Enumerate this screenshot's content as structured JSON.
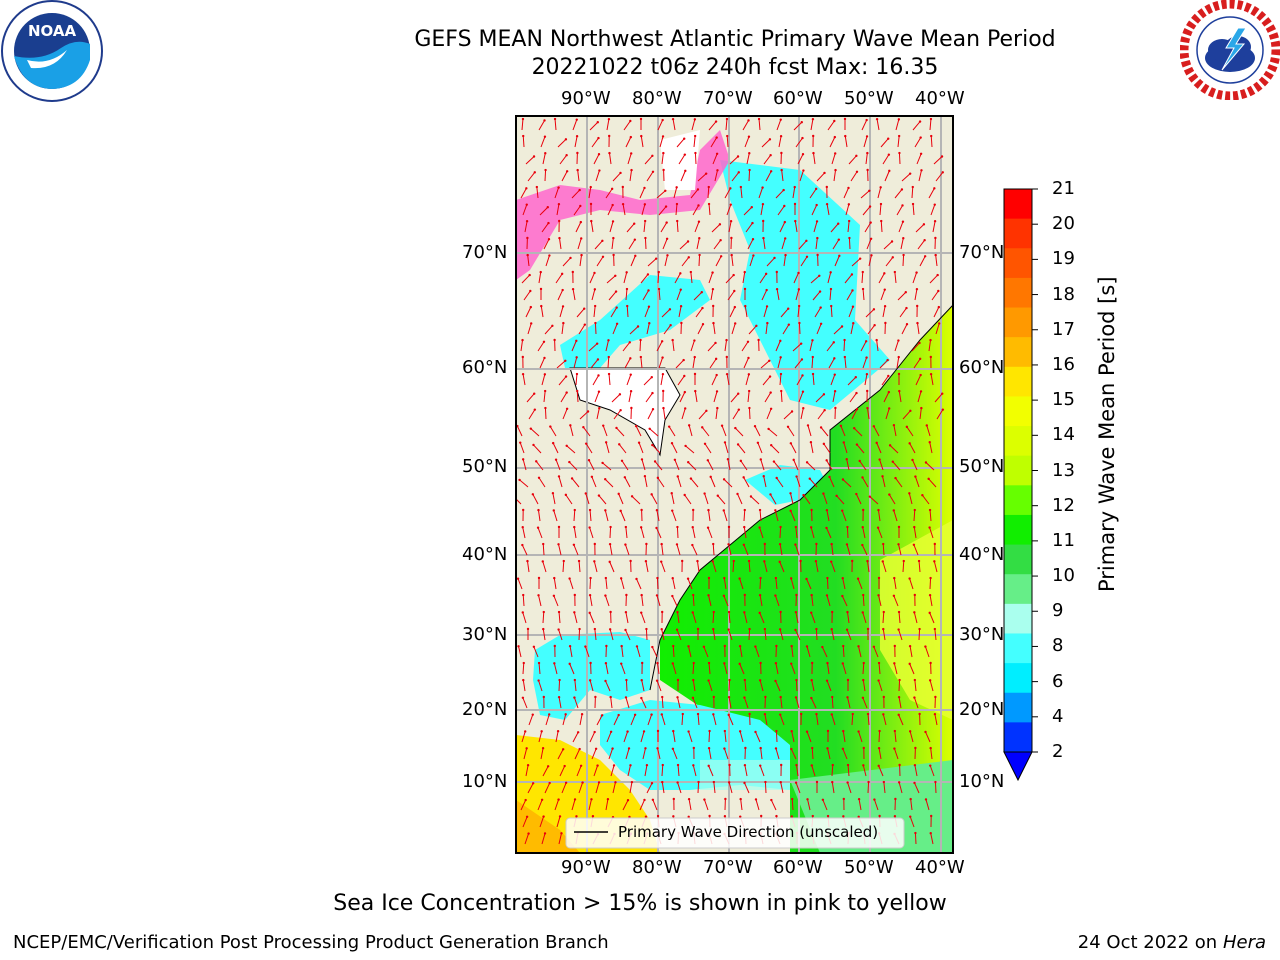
{
  "title": {
    "line1": "GEFS MEAN Northwest Atlantic Primary Wave Mean Period",
    "line2": "20221022 t06z 240h fcst   Max: 16.35"
  },
  "logos": {
    "left": {
      "name": "NOAA",
      "text": "NOAA"
    },
    "right": {
      "name": "National Weather Service"
    }
  },
  "map": {
    "lon_labels": [
      "90°W",
      "80°W",
      "70°W",
      "60°W",
      "50°W",
      "40°W"
    ],
    "lat_labels": [
      "70°N",
      "60°N",
      "50°N",
      "40°N",
      "30°N",
      "20°N",
      "10°N"
    ],
    "legend_label": "Primary Wave Direction (unscaled)",
    "land_color": "#efedda",
    "arrow_color": "#e8000b"
  },
  "colorbar": {
    "label": "Primary Wave Mean Period [s]",
    "ticks": [
      "21",
      "20",
      "19",
      "18",
      "17",
      "16",
      "15",
      "14",
      "13",
      "12",
      "11",
      "10",
      "9",
      "8",
      "6",
      "4",
      "2"
    ],
    "colors": [
      "#ff0000",
      "#ff3300",
      "#ff5500",
      "#ff7700",
      "#ff9900",
      "#ffbb00",
      "#ffe600",
      "#f2ff00",
      "#dcff00",
      "#bfff00",
      "#66ff00",
      "#11ee00",
      "#33dd44",
      "#66ee88",
      "#aaffee",
      "#44ffff",
      "#00eeff",
      "#0099ff",
      "#0033ff"
    ],
    "under_color": "#0000ff"
  },
  "caption": "Sea Ice Concentration > 15% is shown in pink to yellow",
  "footer": {
    "left": "NCEP/EMC/Verification Post Processing Product Generation Branch",
    "right_prefix": "24 Oct 2022 on ",
    "right_host": "Hera"
  }
}
